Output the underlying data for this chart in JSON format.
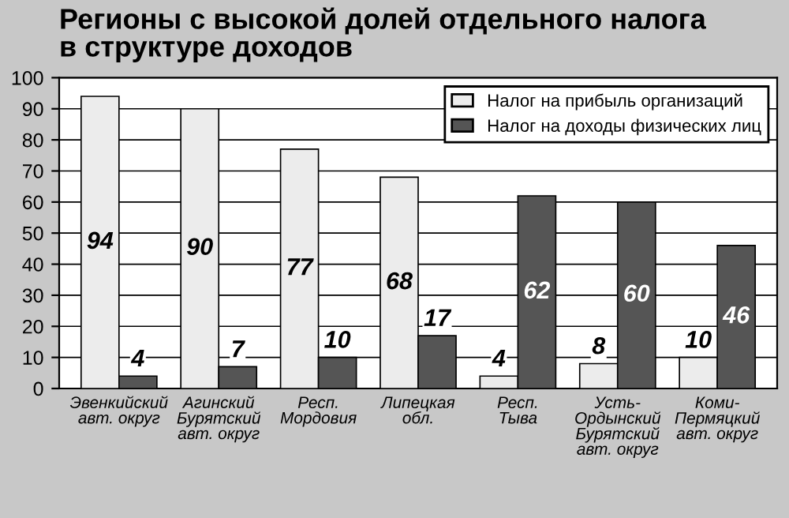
{
  "chart_data": {
    "type": "bar",
    "title": "Регионы с высокой долей отдельного налога\nв структуре доходов",
    "categories": [
      "Эвенкийский\nавт. округ",
      "Агинский\nБурятский\nавт. округ",
      "Респ.\nМордовия",
      "Липецкая\nобл.",
      "Респ.\nТыва",
      "Усть-\nОрдынский\nБурятский\nавт. округ",
      "Коми-\nПермяцкий\nавт. округ"
    ],
    "series": [
      {
        "name": "Налог на прибыль организаций",
        "color": "#ececec",
        "values": [
          94,
          90,
          77,
          68,
          4,
          8,
          10
        ]
      },
      {
        "name": "Налог на доходы физических лиц",
        "color": "#555555",
        "values": [
          4,
          7,
          10,
          17,
          62,
          60,
          46
        ]
      }
    ],
    "ylim": [
      0,
      100
    ],
    "yticks": [
      0,
      10,
      20,
      30,
      40,
      50,
      60,
      70,
      80,
      90,
      100
    ],
    "grid": "y",
    "legend": "top right",
    "data_labels": true
  }
}
